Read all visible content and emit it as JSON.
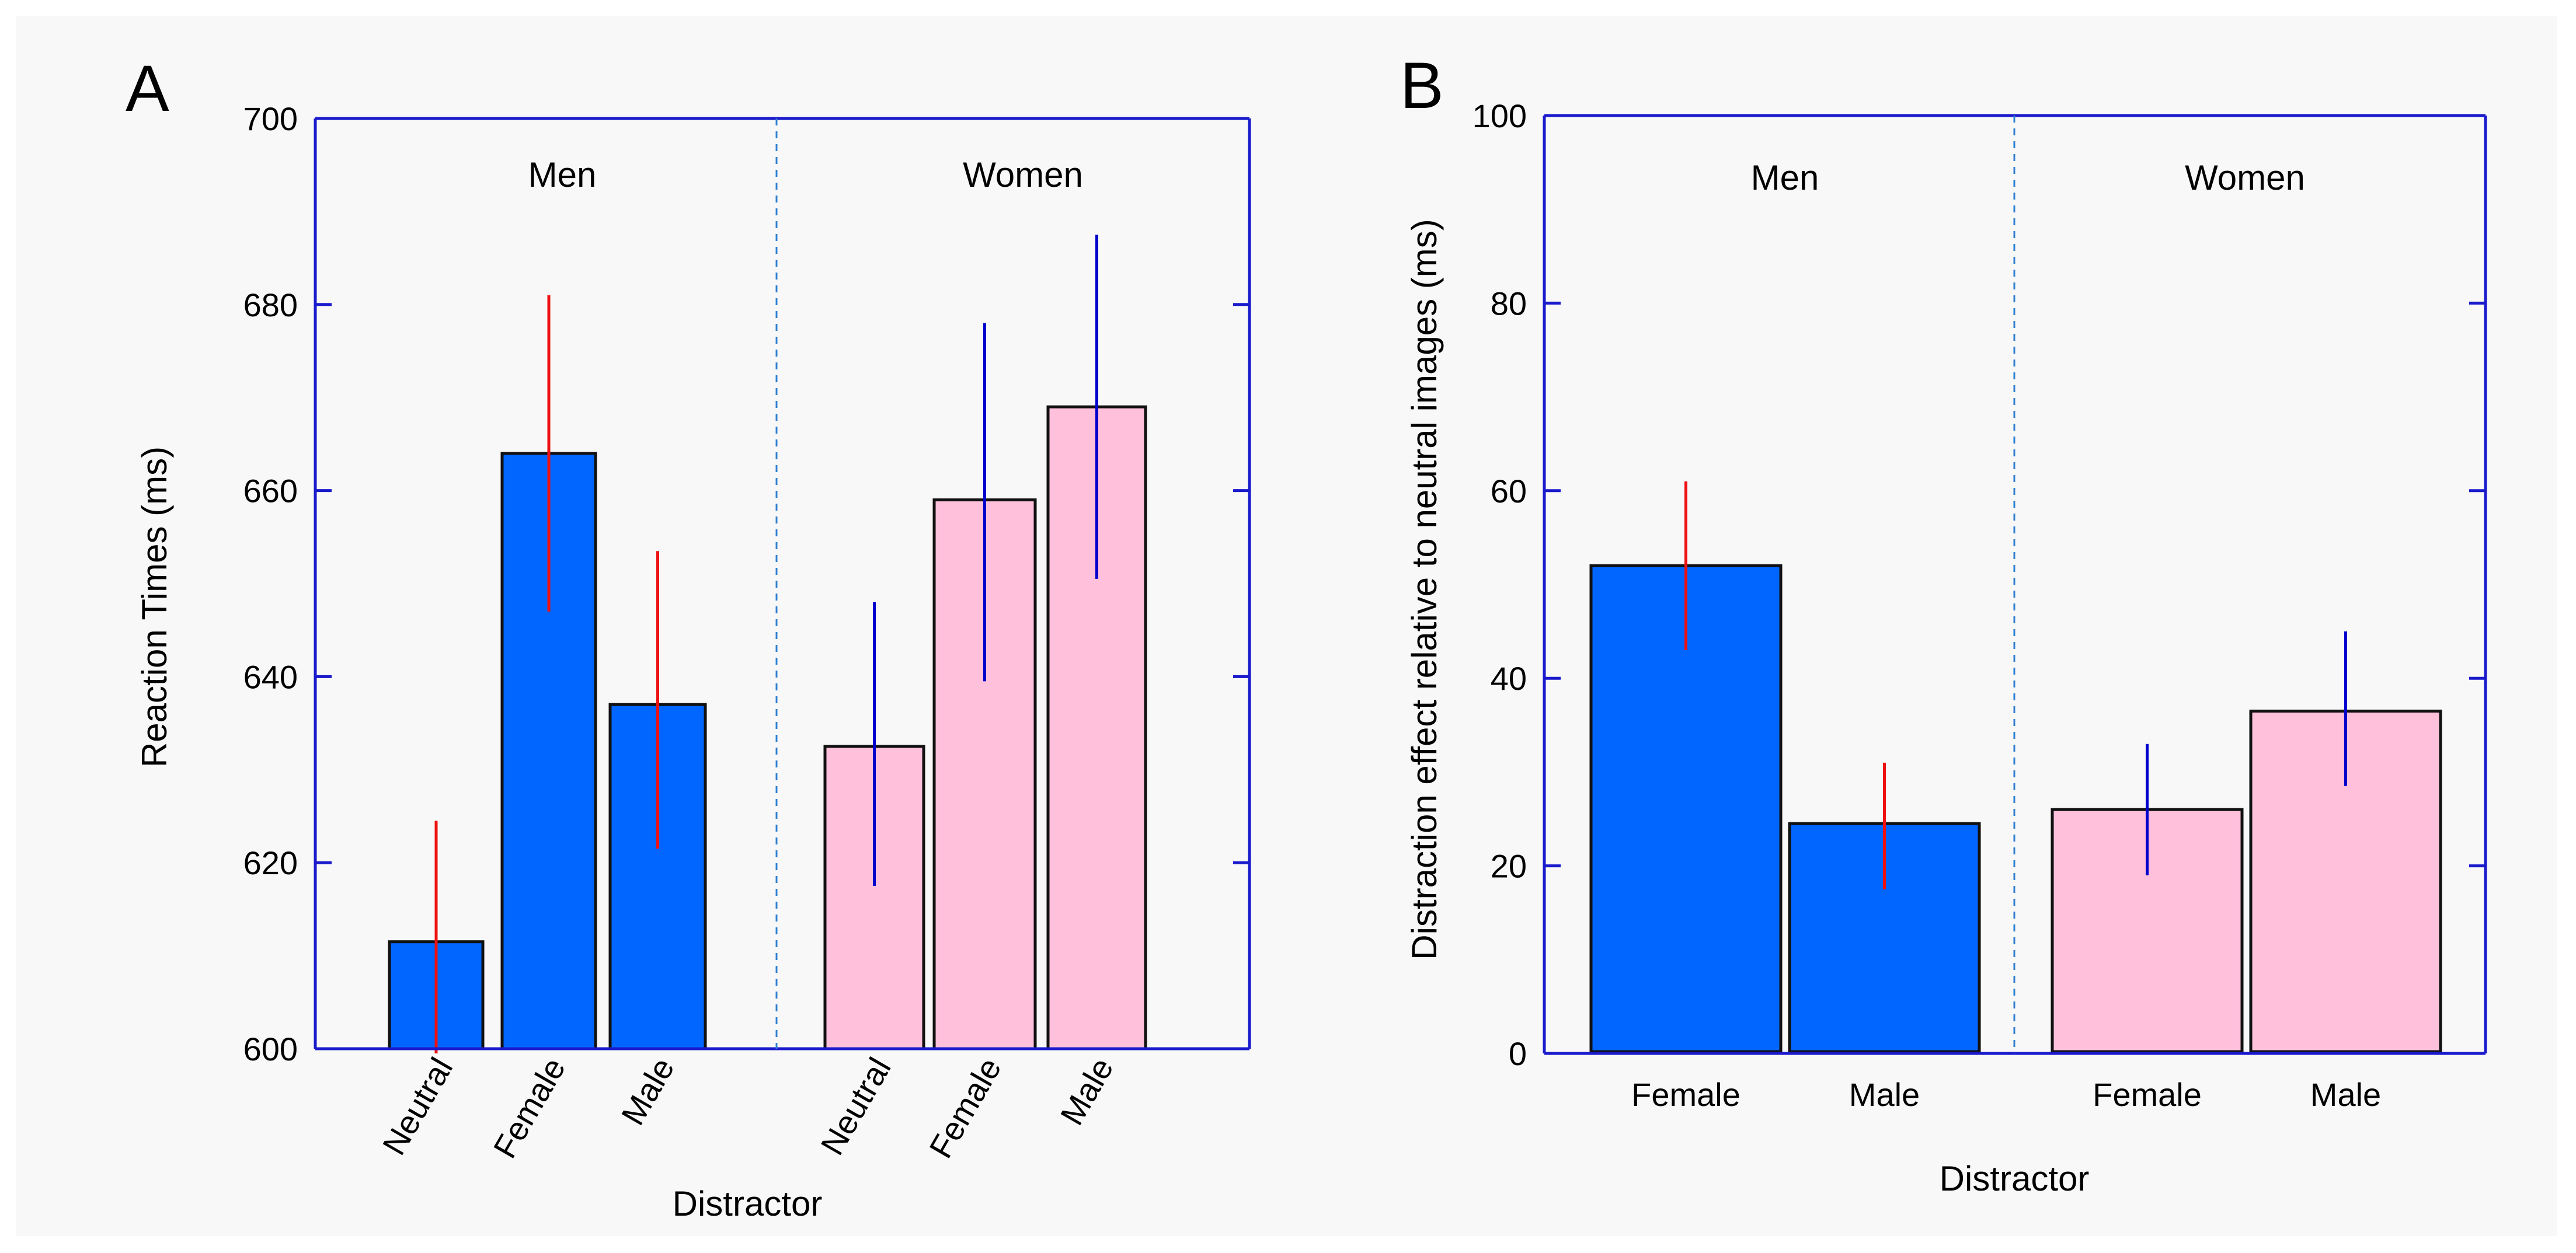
{
  "colors": {
    "men_bar": "#0066ff",
    "women_bar": "#ffc0dc",
    "men_error": "#ee1111",
    "women_error": "#0000cc",
    "axis": "#1a1acc",
    "divider": "#2f7fd0",
    "background": "#f8f8f8"
  },
  "chart_data": [
    {
      "panel": "A",
      "type": "bar",
      "ylabel": "Reaction Times (ms)",
      "xlabel": "Distractor",
      "ylim": [
        600,
        700
      ],
      "yticks": [
        "600",
        "620",
        "640",
        "660",
        "680",
        "700"
      ],
      "groups": [
        {
          "name": "Men",
          "categories": [
            "Neutral",
            "Female",
            "Male"
          ],
          "values": [
            611.5,
            664,
            637
          ],
          "error_low": [
            599.5,
            647,
            621.5
          ],
          "error_high": [
            624.5,
            681,
            653.5
          ]
        },
        {
          "name": "Women",
          "categories": [
            "Neutral",
            "Female",
            "Male"
          ],
          "values": [
            632.5,
            659,
            669
          ],
          "error_low": [
            617.5,
            639.5,
            650.5
          ],
          "error_high": [
            648,
            678,
            687.5
          ]
        }
      ]
    },
    {
      "panel": "B",
      "type": "bar",
      "ylabel": "Distraction effect relative to neutral images (ms)",
      "xlabel": "Distractor",
      "ylim": [
        0,
        100
      ],
      "yticks": [
        "0",
        "20",
        "40",
        "60",
        "80",
        "100"
      ],
      "groups": [
        {
          "name": "Men",
          "categories": [
            "Female",
            "Male"
          ],
          "values": [
            52,
            24.5
          ],
          "error_low": [
            43,
            17.5
          ],
          "error_high": [
            61,
            31
          ]
        },
        {
          "name": "Women",
          "categories": [
            "Female",
            "Male"
          ],
          "values": [
            26,
            36.5
          ],
          "error_low": [
            19,
            28.5
          ],
          "error_high": [
            33,
            45
          ]
        }
      ]
    }
  ]
}
